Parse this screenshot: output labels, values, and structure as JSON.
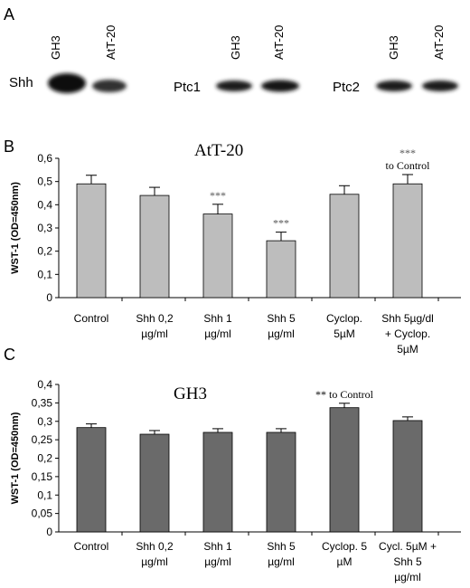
{
  "panel_a": {
    "letter": "A",
    "groups": [
      {
        "label": "Shh",
        "lanes": [
          "GH3",
          "AtT-20"
        ]
      },
      {
        "label": "Ptc1",
        "lanes": [
          "GH3",
          "AtT-20"
        ]
      },
      {
        "label": "Ptc2",
        "lanes": [
          "GH3",
          "AtT-20"
        ]
      }
    ]
  },
  "chart_data": [
    {
      "type": "bar",
      "panel": "B",
      "title": "AtT-20",
      "ylabel": "WST-1 (OD=450nm)",
      "xlabel": "",
      "ylim": [
        0,
        0.6
      ],
      "yticks": [
        "0",
        "0,1",
        "0,2",
        "0,3",
        "0,4",
        "0,5",
        "0,6"
      ],
      "grid": false,
      "bar_color": "#bdbdbd",
      "categories": [
        [
          "Control"
        ],
        [
          "Shh 0,2",
          "µg/ml"
        ],
        [
          "Shh 1",
          "µg/ml"
        ],
        [
          "Shh 5",
          "µg/ml"
        ],
        [
          "Cyclop.",
          "5µM"
        ],
        [
          "Shh 5µg/dl",
          "+ Cyclop.",
          "5µM"
        ]
      ],
      "values": [
        0.49,
        0.44,
        0.36,
        0.245,
        0.445,
        0.49
      ],
      "errors": [
        0.037,
        0.035,
        0.042,
        0.037,
        0.037,
        0.04
      ],
      "annotations": [
        {
          "index": 2,
          "lines": [
            "***"
          ]
        },
        {
          "index": 3,
          "lines": [
            "***"
          ]
        },
        {
          "index": 5,
          "lines": [
            "***",
            "to Control"
          ]
        }
      ]
    },
    {
      "type": "bar",
      "panel": "C",
      "title": "GH3",
      "ylabel": "WST-1 (OD=450nm)",
      "xlabel": "",
      "ylim": [
        0,
        0.4
      ],
      "yticks": [
        "0",
        "0,05",
        "0,1",
        "0,15",
        "0,2",
        "0,25",
        "0,3",
        "0,35",
        "0,4"
      ],
      "grid": false,
      "bar_color": "#6a6a6a",
      "categories": [
        [
          "Control"
        ],
        [
          "Shh 0,2",
          "µg/ml"
        ],
        [
          "Shh 1",
          "µg/ml"
        ],
        [
          "Shh 5",
          "µg/ml"
        ],
        [
          "Cyclop. 5",
          "µM"
        ],
        [
          "Cycl. 5µM +",
          "Shh 5",
          "µg/ml"
        ]
      ],
      "values": [
        0.283,
        0.265,
        0.27,
        0.27,
        0.337,
        0.302
      ],
      "errors": [
        0.01,
        0.01,
        0.01,
        0.01,
        0.012,
        0.01
      ],
      "annotations": [
        {
          "index": 4,
          "lines": [
            "** to Control"
          ]
        }
      ]
    }
  ]
}
